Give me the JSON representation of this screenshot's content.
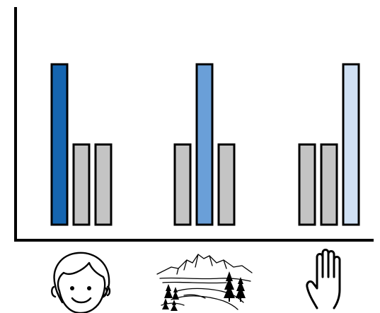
{
  "chart_data": {
    "type": "bar",
    "categories": [
      "face",
      "landscape",
      "hand"
    ],
    "category_icons": [
      "face-icon",
      "mountain-landscape-icon",
      "hand-icon"
    ],
    "series": [
      {
        "values": [
          100,
          50,
          50
        ]
      },
      {
        "values": [
          50,
          100,
          50
        ]
      },
      {
        "values": [
          50,
          50,
          100
        ]
      }
    ],
    "highlight_colors": [
      "#1565b0",
      "#6a9fd8",
      "#cfe0f4"
    ],
    "base_color": "#c4c4c4",
    "ylim": [
      0,
      100
    ],
    "grid": false,
    "legend": "none",
    "title": "",
    "xlabel": "",
    "ylabel": ""
  }
}
